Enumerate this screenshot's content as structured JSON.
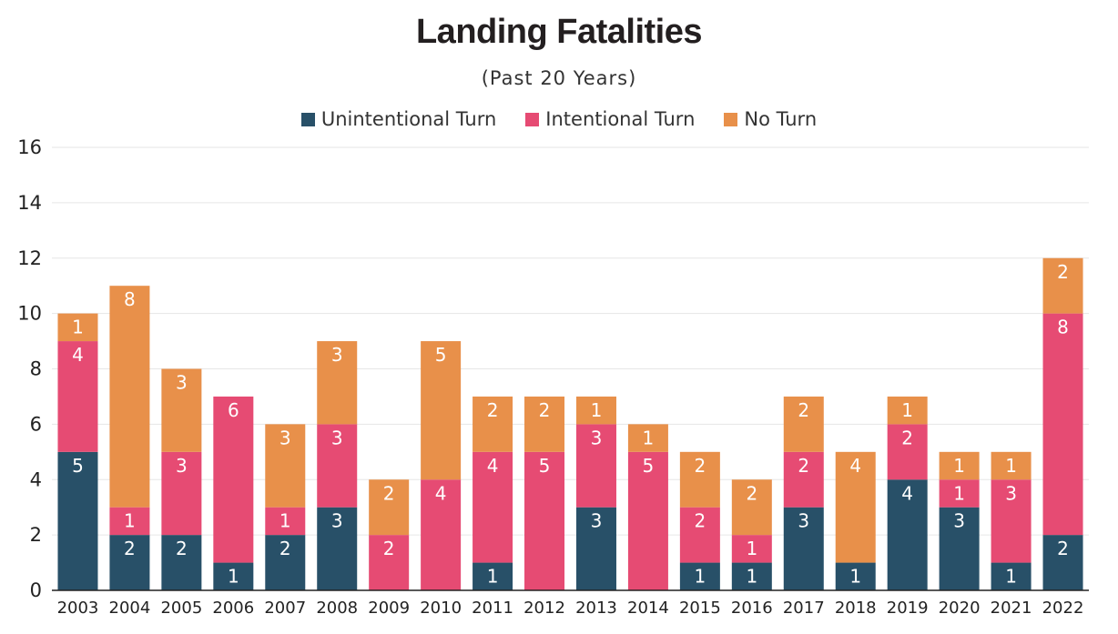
{
  "chart_data": {
    "type": "bar",
    "stacked": true,
    "title": "Landing Fatalities",
    "subtitle": "(Past 20 Years)",
    "xlabel": "",
    "ylabel": "",
    "ylim": [
      0,
      16
    ],
    "yticks": [
      0,
      2,
      4,
      6,
      8,
      10,
      12,
      14,
      16
    ],
    "grid": true,
    "legend_position": "top-center",
    "categories": [
      "2003",
      "2004",
      "2005",
      "2006",
      "2007",
      "2008",
      "2009",
      "2010",
      "2011",
      "2012",
      "2013",
      "2014",
      "2015",
      "2016",
      "2017",
      "2018",
      "2019",
      "2020",
      "2021",
      "2022"
    ],
    "series": [
      {
        "name": "Unintentional Turn",
        "color": "#285068",
        "values": [
          5,
          2,
          2,
          1,
          2,
          3,
          0,
          0,
          1,
          0,
          3,
          0,
          1,
          1,
          3,
          1,
          4,
          3,
          1,
          2
        ]
      },
      {
        "name": "Intentional Turn",
        "color": "#e64b73",
        "values": [
          4,
          1,
          3,
          6,
          1,
          3,
          2,
          4,
          4,
          5,
          3,
          5,
          2,
          1,
          2,
          0,
          2,
          1,
          3,
          8
        ]
      },
      {
        "name": "No Turn",
        "color": "#e8904a",
        "values": [
          1,
          8,
          3,
          0,
          3,
          3,
          2,
          5,
          2,
          2,
          1,
          1,
          2,
          2,
          2,
          4,
          1,
          1,
          1,
          2
        ]
      }
    ]
  }
}
